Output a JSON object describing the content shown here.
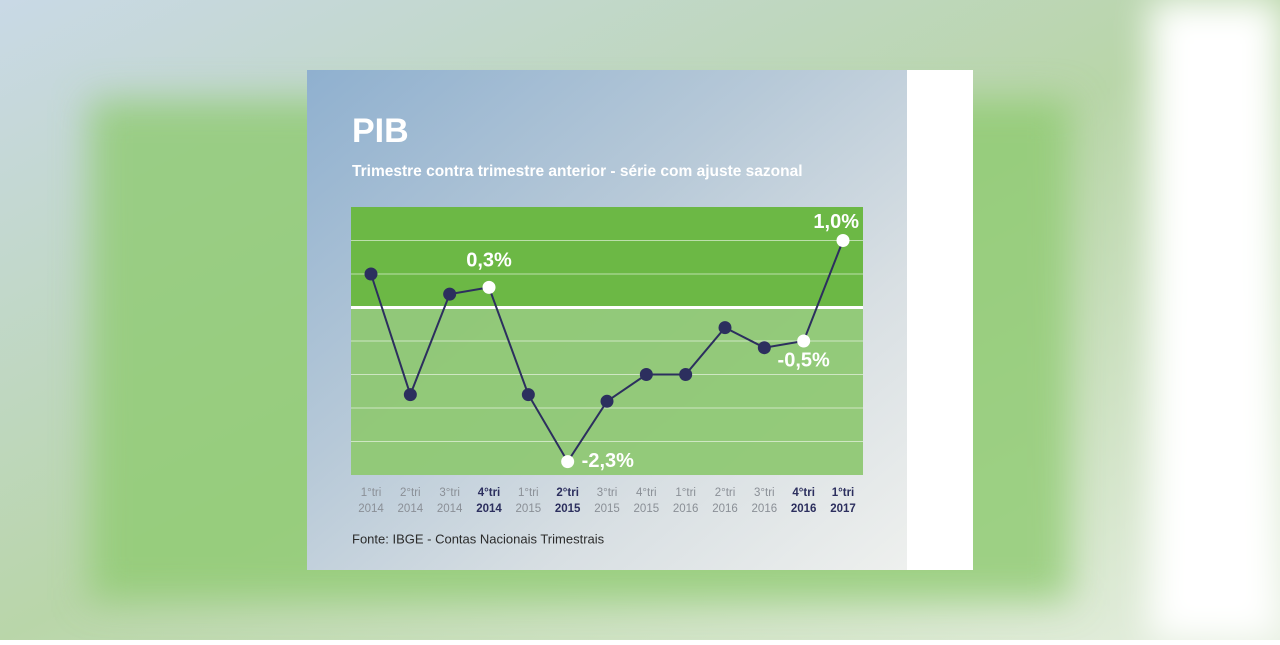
{
  "chart_data": {
    "type": "line",
    "title": "PIB",
    "subtitle": "Trimestre contra trimestre anterior - série com ajuste sazonal",
    "source": "Fonte: IBGE - Contas Nacionais Trimestrais",
    "categories": [
      [
        "1°tri",
        "2014"
      ],
      [
        "2°tri",
        "2014"
      ],
      [
        "3°tri",
        "2014"
      ],
      [
        "4°tri",
        "2014"
      ],
      [
        "1°tri",
        "2015"
      ],
      [
        "2°tri",
        "2015"
      ],
      [
        "3°tri",
        "2015"
      ],
      [
        "4°tri",
        "2015"
      ],
      [
        "1°tri",
        "2016"
      ],
      [
        "2°tri",
        "2016"
      ],
      [
        "3°tri",
        "2016"
      ],
      [
        "4°tri",
        "2016"
      ],
      [
        "1°tri",
        "2017"
      ]
    ],
    "values": [
      0.5,
      -1.3,
      0.2,
      0.3,
      -1.3,
      -2.3,
      -1.4,
      -1.0,
      -1.0,
      -0.3,
      -0.6,
      -0.5,
      1.0
    ],
    "value_labels": [
      null,
      null,
      null,
      "0,3%",
      null,
      "-2,3%",
      null,
      null,
      null,
      null,
      null,
      "-0,5%",
      "1,0%"
    ],
    "color": "#2c2f5e",
    "ylim": [
      -2.5,
      1.5
    ],
    "yticks": [
      -2,
      -1.5,
      -1,
      -0.5,
      0.5,
      1
    ],
    "grid": true
  }
}
